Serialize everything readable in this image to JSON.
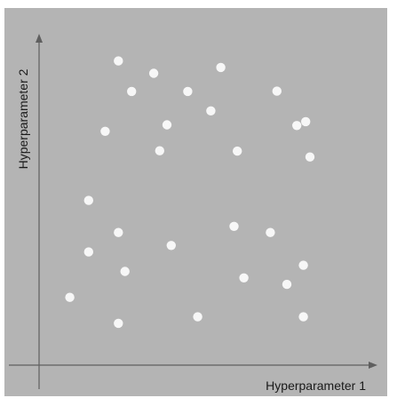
{
  "chart_data": {
    "type": "scatter",
    "title": "",
    "xlabel": "Hyperparameter 1",
    "ylabel": "Hyperparameter 2",
    "xlim": [
      0,
      100
    ],
    "ylim": [
      0,
      100
    ],
    "grid": false,
    "legend": "none",
    "x_ticks": false,
    "y_ticks": false,
    "colors": {
      "background": "#b4b4b4",
      "point": "#f7f7f7",
      "axis": "#5f5f5f"
    },
    "series": [
      {
        "x": [
          24,
          34.7,
          55,
          72,
          28,
          45,
          52,
          78,
          80.7,
          20,
          38.7,
          36.5,
          60,
          82,
          15,
          24,
          59,
          70,
          40,
          15,
          26,
          62,
          75,
          80,
          9.3,
          24,
          48,
          80
        ],
        "y": [
          93.8,
          90,
          91.8,
          84.5,
          84.4,
          84.4,
          78.4,
          73.9,
          75.1,
          72.1,
          74.1,
          66.1,
          66,
          64.2,
          50.8,
          40.9,
          42.8,
          40.9,
          36.9,
          34.9,
          28.9,
          26.9,
          24.9,
          30.8,
          20.9,
          12.9,
          14.9,
          14.9
        ]
      }
    ]
  }
}
